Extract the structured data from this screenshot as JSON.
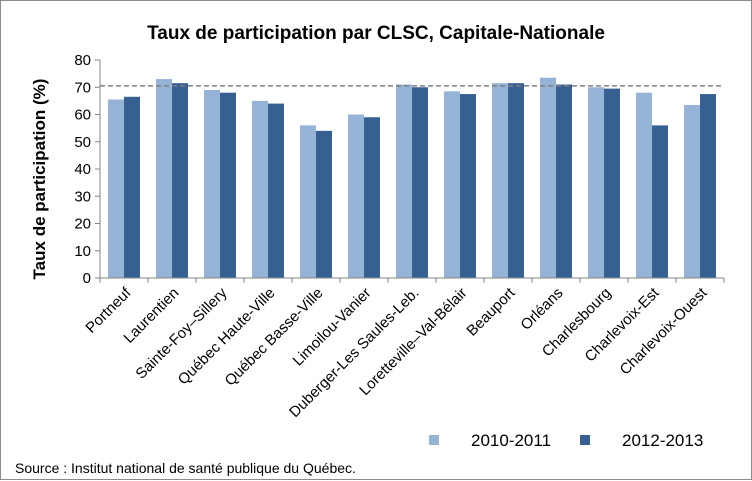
{
  "chart_data": {
    "type": "bar",
    "title": "Taux de participation par CLSC, Capitale-Nationale",
    "ylabel": "Taux de participation (%)",
    "xlabel": "",
    "ylim": [
      0,
      80
    ],
    "yticks": [
      "0",
      "10",
      "20",
      "30",
      "40",
      "50",
      "60",
      "70",
      "80"
    ],
    "grid": false,
    "reference_line": {
      "value": 70.5,
      "style": "dashed"
    },
    "legend_position": "bottom-right",
    "categories": [
      "Portneuf",
      "Laurentien",
      "Sainte-Foy–Sillery",
      "Québec Haute-Ville",
      "Québec Basse-Ville",
      "Limoilou-Vanier",
      "Duberger-Les Saules-Leb.",
      "Loretteville–Val-Bélair",
      "Beauport",
      "Orléans",
      "Charlesbourg",
      "Charlevoix-Est",
      "Charlevoix-Ouest"
    ],
    "series": [
      {
        "name": "2010-2011",
        "color": "#95b3d7",
        "values": [
          65.5,
          73,
          69,
          65,
          56,
          60,
          71,
          68.5,
          71.5,
          73.5,
          70,
          68,
          63.5
        ]
      },
      {
        "name": "2012-2013",
        "color": "#366092",
        "values": [
          66.5,
          71.5,
          68,
          64,
          54,
          59,
          70,
          67.5,
          71.5,
          71,
          69.5,
          56,
          67.5
        ]
      }
    ]
  },
  "source": "Source : Institut national de santé publique du Québec."
}
